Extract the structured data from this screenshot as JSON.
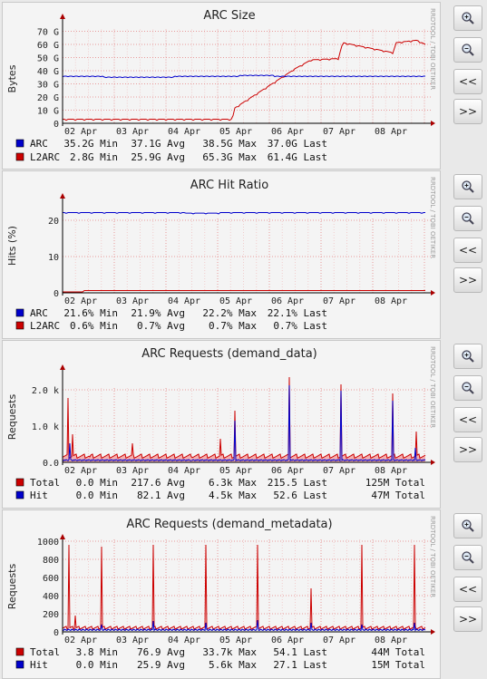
{
  "graphs": [
    {
      "title": "ARC Size",
      "ylabel": "Bytes",
      "watermark": "RRDTOOL / TOBI OETIKER",
      "x_ticks": [
        "02 Apr",
        "03 Apr",
        "04 Apr",
        "05 Apr",
        "06 Apr",
        "07 Apr",
        "08 Apr"
      ],
      "y_ticks": [
        "0",
        "10 G",
        "20 G",
        "30 G",
        "40 G",
        "50 G",
        "60 G",
        "70 G"
      ],
      "legend": [
        {
          "name": "ARC",
          "min": "35.2G Min",
          "avg": "37.1G Avg",
          "max": "38.5G Max",
          "last": "37.0G Last",
          "color": "#0000cc"
        },
        {
          "name": "L2ARC",
          "min": "2.8G Min",
          "avg": "25.9G Avg",
          "max": "65.3G Max",
          "last": "61.4G Last",
          "color": "#cc0000"
        }
      ]
    },
    {
      "title": "ARC Hit Ratio",
      "ylabel": "Hits (%)",
      "watermark": "RRDTOOL / TOBI OETIKER",
      "x_ticks": [
        "02 Apr",
        "03 Apr",
        "04 Apr",
        "05 Apr",
        "06 Apr",
        "07 Apr",
        "08 Apr"
      ],
      "y_ticks": [
        "0",
        "10",
        "20"
      ],
      "legend": [
        {
          "name": "ARC",
          "min": "21.6% Min",
          "avg": "21.9% Avg",
          "max": "22.2% Max",
          "last": "22.1% Last",
          "color": "#0000cc"
        },
        {
          "name": "L2ARC",
          "min": "0.6% Min",
          "avg": "0.7% Avg",
          "max": "0.7% Max",
          "last": "0.7% Last",
          "color": "#cc0000"
        }
      ]
    },
    {
      "title": "ARC Requests (demand_data)",
      "ylabel": "Requests",
      "watermark": "RRDTOOL / TOBI OETIKER",
      "x_ticks": [
        "02 Apr",
        "03 Apr",
        "04 Apr",
        "05 Apr",
        "06 Apr",
        "07 Apr",
        "08 Apr"
      ],
      "y_ticks": [
        "0.0",
        "1.0 k",
        "2.0 k"
      ],
      "legend": [
        {
          "name": "Total",
          "min": "0.0 Min",
          "avg": "217.6 Avg",
          "max": "6.3k Max",
          "last": "215.5 Last",
          "total": "125M Total",
          "color": "#cc0000"
        },
        {
          "name": "Hit",
          "min": "0.0 Min",
          "avg": "82.1 Avg",
          "max": "4.5k Max",
          "last": "52.6 Last",
          "total": "47M Total",
          "color": "#0000cc"
        }
      ]
    },
    {
      "title": "ARC Requests (demand_metadata)",
      "ylabel": "Requests",
      "watermark": "RRDTOOL / TOBI OETIKER",
      "x_ticks": [
        "02 Apr",
        "03 Apr",
        "04 Apr",
        "05 Apr",
        "06 Apr",
        "07 Apr",
        "08 Apr"
      ],
      "y_ticks": [
        "0",
        "200",
        "400",
        "600",
        "800",
        "1000"
      ],
      "legend": [
        {
          "name": "Total",
          "min": "3.8 Min",
          "avg": "76.9 Avg",
          "max": "33.7k Max",
          "last": "54.1 Last",
          "total": "44M Total",
          "color": "#cc0000"
        },
        {
          "name": "Hit",
          "min": "0.0 Min",
          "avg": "25.9 Avg",
          "max": "5.6k Max",
          "last": "27.1 Last",
          "total": "15M Total",
          "color": "#0000cc"
        }
      ]
    }
  ],
  "controls": {
    "zoom_in": "zoom-in",
    "zoom_out": "zoom-out",
    "back_label": "<<",
    "forward_label": ">>"
  }
}
